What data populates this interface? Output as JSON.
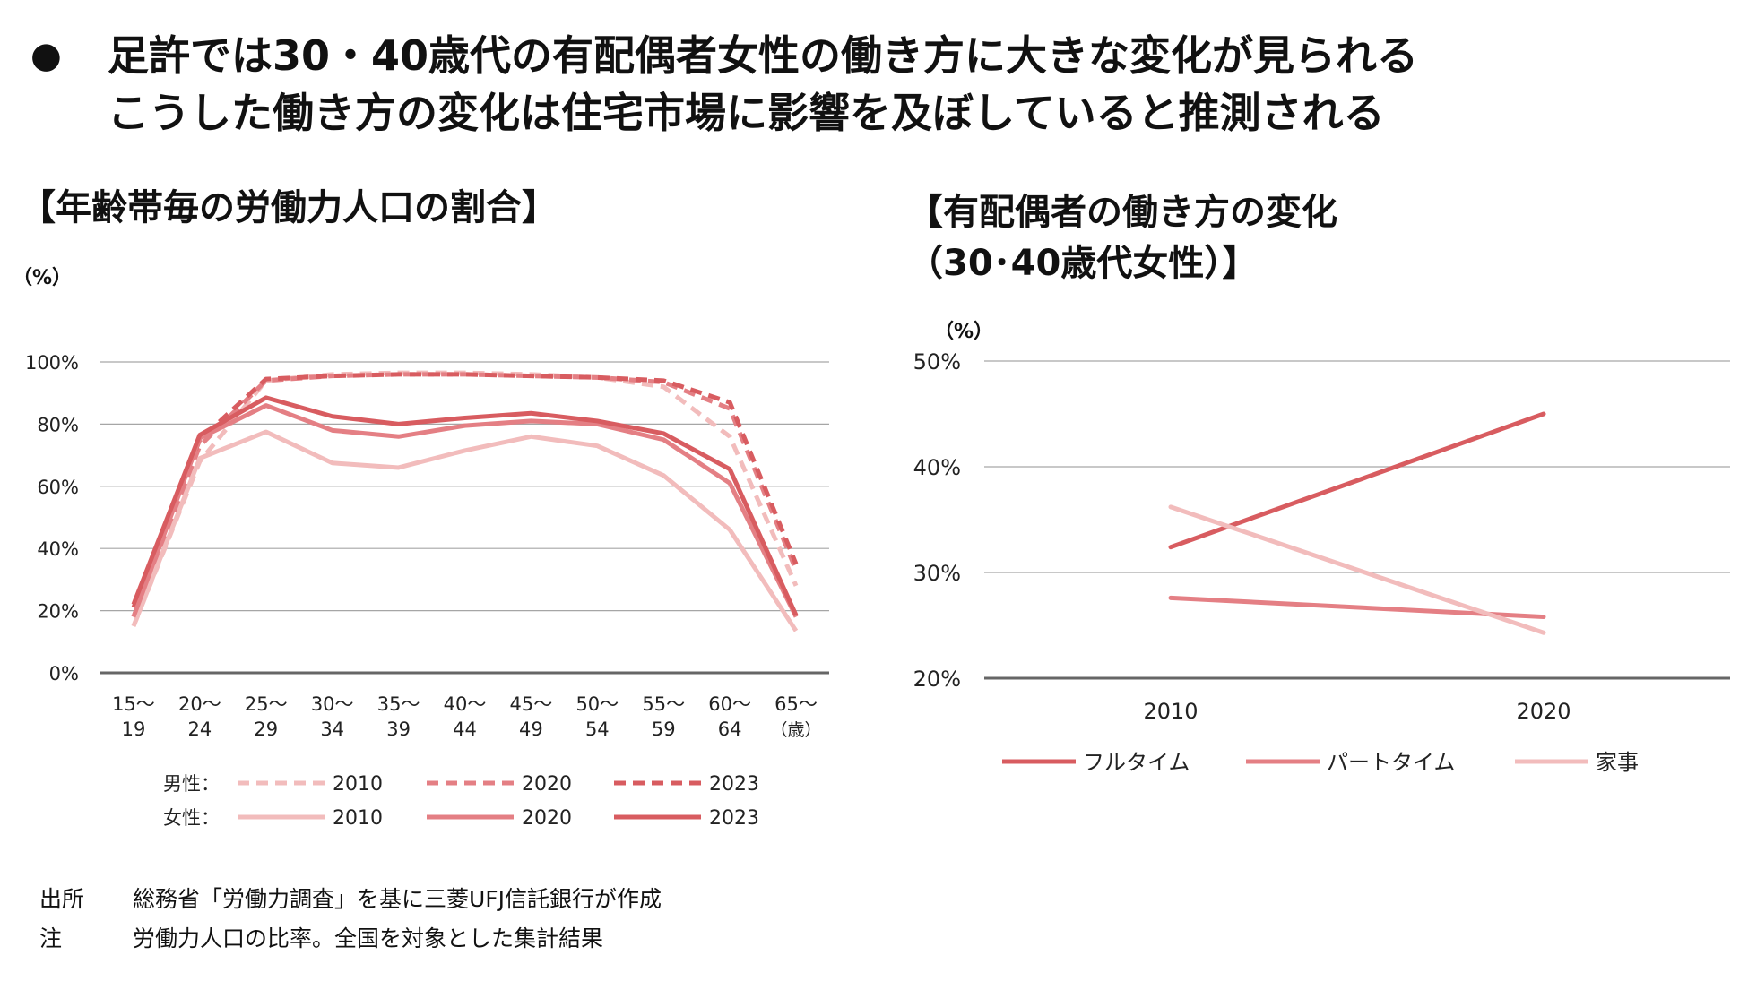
{
  "headline": {
    "bullet": "●",
    "line1": "足許では30・40歳代の有配偶者女性の働き方に大きな変化が見られる",
    "line2": "こうした働き方の変化は住宅市場に影響を及ぼしていると推測される"
  },
  "left_chart": {
    "title": "【年齢帯毎の労働力人口の割合】",
    "unit": "（%）",
    "legend_group_male": "男性：",
    "legend_group_female": "女性：",
    "age_unit": "（歳）"
  },
  "right_chart": {
    "title_line1": "【有配偶者の働き方の変化",
    "title_line2": "（30･40歳代女性）】",
    "unit": "（%）"
  },
  "source": {
    "label": "出所",
    "text": "総務省「労働力調査」を基に三菱UFJ信託銀行が作成",
    "note_label": "注",
    "note_text": "労働力人口の比率。全国を対象とした集計結果"
  },
  "chart_data": [
    {
      "type": "line",
      "title": "【年齢帯毎の労働力人口の割合】",
      "ylabel": "（%）",
      "ylim": [
        0,
        100
      ],
      "yticks": [
        "0%",
        "20%",
        "40%",
        "60%",
        "80%",
        "100%"
      ],
      "categories": [
        [
          "15～",
          "19"
        ],
        [
          "20～",
          "24"
        ],
        [
          "25～",
          "29"
        ],
        [
          "30～",
          "34"
        ],
        [
          "35～",
          "39"
        ],
        [
          "40～",
          "44"
        ],
        [
          "45～",
          "49"
        ],
        [
          "50～",
          "54"
        ],
        [
          "55～",
          "59"
        ],
        [
          "60～",
          "64"
        ],
        [
          "65～",
          ""
        ]
      ],
      "series": [
        {
          "group": "男性",
          "name": "2010",
          "color": "#f2bcbc",
          "dashed": true,
          "values": [
            15,
            68,
            94,
            96,
            96.5,
            96.5,
            96,
            95,
            92,
            76,
            28
          ]
        },
        {
          "group": "男性",
          "name": "2020",
          "color": "#e47f84",
          "dashed": true,
          "values": [
            18,
            73,
            94,
            95.5,
            96,
            96,
            95.5,
            95,
            93.5,
            85,
            33
          ]
        },
        {
          "group": "男性",
          "name": "2023",
          "color": "#d85c60",
          "dashed": true,
          "values": [
            21,
            75,
            94.5,
            95.5,
            96,
            96,
            95.5,
            95,
            94,
            87,
            35
          ]
        },
        {
          "group": "女性",
          "name": "2010",
          "color": "#f2bcbc",
          "dashed": false,
          "values": [
            15,
            69,
            77.5,
            67.5,
            66,
            71.5,
            76,
            73,
            63.5,
            46,
            13.5
          ]
        },
        {
          "group": "女性",
          "name": "2020",
          "color": "#e47f84",
          "dashed": false,
          "values": [
            18,
            75.5,
            86,
            78,
            76,
            79.5,
            81,
            80,
            75,
            61,
            18
          ]
        },
        {
          "group": "女性",
          "name": "2023",
          "color": "#d85c60",
          "dashed": false,
          "values": [
            22,
            76.5,
            88.5,
            82.5,
            80,
            82,
            83.5,
            81,
            77,
            65.5,
            18.5
          ]
        }
      ]
    },
    {
      "type": "line",
      "title": "【有配偶者の働き方の変化（30･40歳代女性）】",
      "ylabel": "（%）",
      "ylim": [
        20,
        50
      ],
      "yticks": [
        "20%",
        "30%",
        "40%",
        "50%"
      ],
      "categories": [
        "2010",
        "2020"
      ],
      "series": [
        {
          "name": "フルタイム",
          "color": "#d85c60",
          "values": [
            32.4,
            45
          ]
        },
        {
          "name": "パートタイム",
          "color": "#e47f84",
          "values": [
            27.6,
            25.8
          ]
        },
        {
          "name": "家事",
          "color": "#f2bcbc",
          "values": [
            36.2,
            24.3
          ]
        }
      ]
    }
  ]
}
